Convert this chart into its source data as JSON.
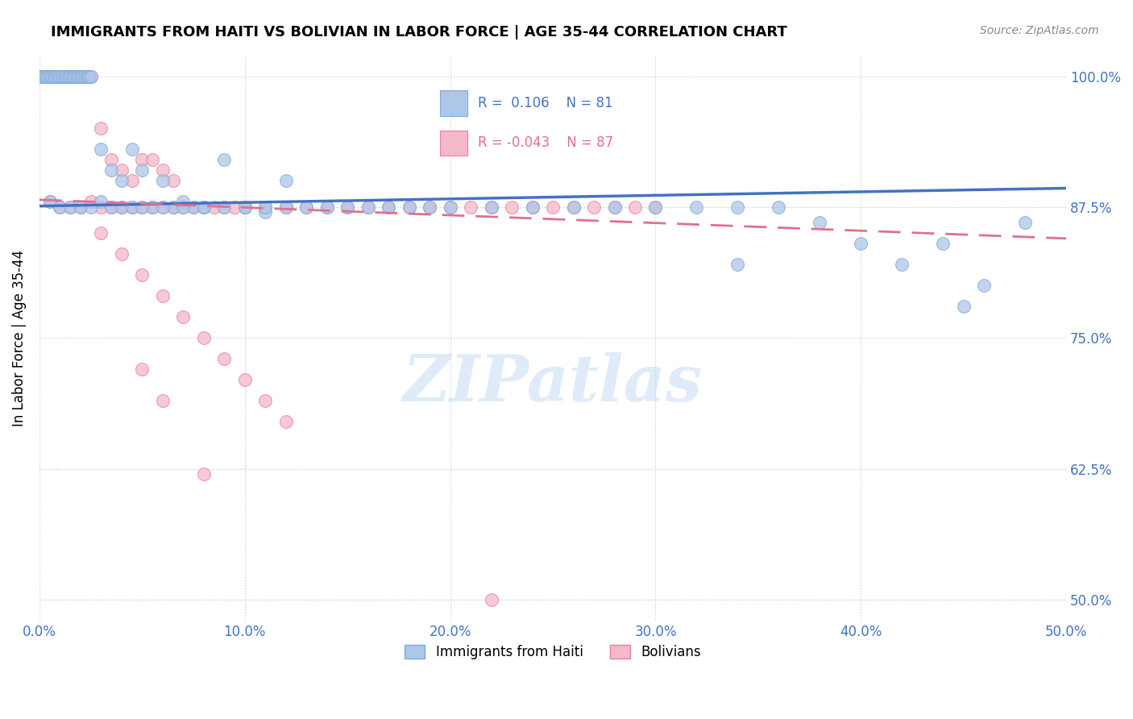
{
  "title": "IMMIGRANTS FROM HAITI VS BOLIVIAN IN LABOR FORCE | AGE 35-44 CORRELATION CHART",
  "source": "Source: ZipAtlas.com",
  "ylabel": "In Labor Force | Age 35-44",
  "xlim": [
    0.0,
    0.5
  ],
  "ylim": [
    0.48,
    1.02
  ],
  "yticks": [
    0.5,
    0.625,
    0.75,
    0.875,
    1.0
  ],
  "ytick_labels": [
    "50.0%",
    "62.5%",
    "75.0%",
    "87.5%",
    "100.0%"
  ],
  "xticks": [
    0.0,
    0.1,
    0.2,
    0.3,
    0.4,
    0.5
  ],
  "xtick_labels": [
    "0.0%",
    "10.0%",
    "20.0%",
    "30.0%",
    "40.0%",
    "50.0%"
  ],
  "haiti_color": "#aec6e8",
  "haiti_edge_color": "#7aabda",
  "bolivia_color": "#f5b8c8",
  "bolivia_edge_color": "#e8809a",
  "haiti_R": 0.106,
  "haiti_N": 81,
  "bolivia_R": -0.043,
  "bolivia_N": 87,
  "haiti_line_color": "#4472c4",
  "bolivia_line_color": "#e07090",
  "watermark": "ZIPatlas",
  "tick_color": "#4472c4",
  "title_fontsize": 13,
  "source_fontsize": 10,
  "haiti_scatter_x": [
    0.001,
    0.002,
    0.003,
    0.004,
    0.005,
    0.006,
    0.007,
    0.008,
    0.009,
    0.01,
    0.011,
    0.012,
    0.013,
    0.014,
    0.015,
    0.016,
    0.017,
    0.018,
    0.019,
    0.02,
    0.021,
    0.022,
    0.023,
    0.024,
    0.025,
    0.03,
    0.035,
    0.04,
    0.045,
    0.05,
    0.055,
    0.06,
    0.065,
    0.07,
    0.075,
    0.08,
    0.09,
    0.1,
    0.11,
    0.12,
    0.005,
    0.01,
    0.015,
    0.02,
    0.025,
    0.03,
    0.035,
    0.04,
    0.045,
    0.05,
    0.06,
    0.07,
    0.08,
    0.09,
    0.1,
    0.11,
    0.12,
    0.13,
    0.14,
    0.15,
    0.16,
    0.17,
    0.18,
    0.19,
    0.2,
    0.22,
    0.24,
    0.26,
    0.28,
    0.3,
    0.32,
    0.34,
    0.36,
    0.38,
    0.4,
    0.42,
    0.44,
    0.46,
    0.34,
    0.45,
    0.48
  ],
  "haiti_scatter_y": [
    1.0,
    1.0,
    1.0,
    1.0,
    1.0,
    1.0,
    1.0,
    1.0,
    1.0,
    1.0,
    1.0,
    1.0,
    1.0,
    1.0,
    1.0,
    1.0,
    1.0,
    1.0,
    1.0,
    1.0,
    1.0,
    1.0,
    1.0,
    1.0,
    1.0,
    0.93,
    0.91,
    0.9,
    0.93,
    0.91,
    0.875,
    0.9,
    0.875,
    0.88,
    0.875,
    0.875,
    0.92,
    0.875,
    0.87,
    0.9,
    0.88,
    0.875,
    0.875,
    0.875,
    0.875,
    0.88,
    0.875,
    0.875,
    0.875,
    0.875,
    0.875,
    0.875,
    0.875,
    0.875,
    0.875,
    0.875,
    0.875,
    0.875,
    0.875,
    0.875,
    0.875,
    0.875,
    0.875,
    0.875,
    0.875,
    0.875,
    0.875,
    0.875,
    0.875,
    0.875,
    0.875,
    0.875,
    0.875,
    0.86,
    0.84,
    0.82,
    0.84,
    0.8,
    0.82,
    0.78,
    0.86
  ],
  "bolivia_scatter_x": [
    0.001,
    0.002,
    0.003,
    0.004,
    0.005,
    0.006,
    0.007,
    0.008,
    0.009,
    0.01,
    0.011,
    0.012,
    0.013,
    0.014,
    0.015,
    0.016,
    0.017,
    0.018,
    0.019,
    0.02,
    0.021,
    0.022,
    0.023,
    0.024,
    0.025,
    0.03,
    0.035,
    0.04,
    0.045,
    0.05,
    0.055,
    0.06,
    0.065,
    0.005,
    0.01,
    0.015,
    0.02,
    0.025,
    0.03,
    0.035,
    0.04,
    0.045,
    0.05,
    0.055,
    0.06,
    0.065,
    0.07,
    0.075,
    0.08,
    0.085,
    0.09,
    0.095,
    0.1,
    0.11,
    0.12,
    0.13,
    0.14,
    0.15,
    0.16,
    0.17,
    0.18,
    0.19,
    0.2,
    0.21,
    0.22,
    0.23,
    0.24,
    0.25,
    0.26,
    0.27,
    0.28,
    0.29,
    0.3,
    0.03,
    0.04,
    0.05,
    0.06,
    0.07,
    0.08,
    0.09,
    0.1,
    0.11,
    0.12,
    0.05,
    0.06,
    0.08,
    0.22
  ],
  "bolivia_scatter_y": [
    1.0,
    1.0,
    1.0,
    1.0,
    1.0,
    1.0,
    1.0,
    1.0,
    1.0,
    1.0,
    1.0,
    1.0,
    1.0,
    1.0,
    1.0,
    1.0,
    1.0,
    1.0,
    1.0,
    1.0,
    1.0,
    1.0,
    1.0,
    1.0,
    1.0,
    0.95,
    0.92,
    0.91,
    0.9,
    0.92,
    0.92,
    0.91,
    0.9,
    0.88,
    0.875,
    0.875,
    0.875,
    0.88,
    0.875,
    0.875,
    0.875,
    0.875,
    0.875,
    0.875,
    0.875,
    0.875,
    0.875,
    0.875,
    0.875,
    0.875,
    0.875,
    0.875,
    0.875,
    0.875,
    0.875,
    0.875,
    0.875,
    0.875,
    0.875,
    0.875,
    0.875,
    0.875,
    0.875,
    0.875,
    0.875,
    0.875,
    0.875,
    0.875,
    0.875,
    0.875,
    0.875,
    0.875,
    0.875,
    0.85,
    0.83,
    0.81,
    0.79,
    0.77,
    0.75,
    0.73,
    0.71,
    0.69,
    0.67,
    0.72,
    0.69,
    0.62,
    0.5
  ]
}
